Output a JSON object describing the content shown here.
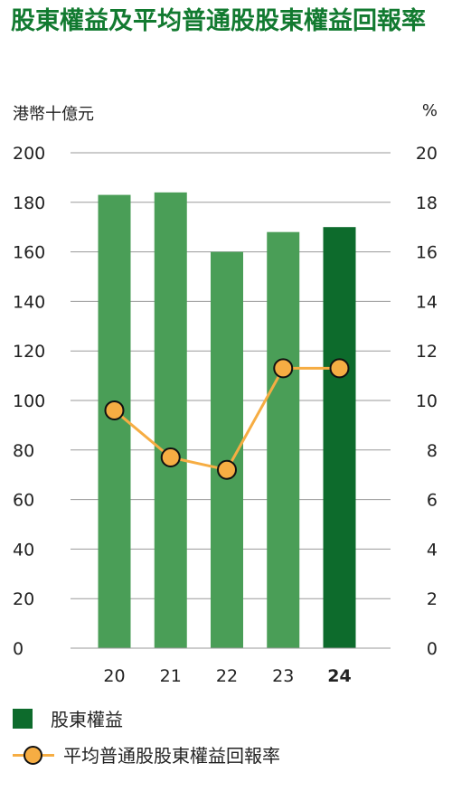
{
  "title": "股東權益及平均普通股股東權益回報率",
  "left_unit": "港幣十億元",
  "right_unit": "%",
  "legend": {
    "bar_label": "股東權益",
    "line_label": "平均普通股股東權益回報率"
  },
  "colors": {
    "title": "#127a30",
    "bar": "#4a9e57",
    "bar_highlight": "#0d6b2c",
    "line": "#f6ad43",
    "marker_border": "#111111",
    "grid": "#9a9a9a"
  },
  "chart_data": {
    "type": "bar",
    "categories": [
      "20",
      "21",
      "22",
      "23",
      "24"
    ],
    "highlight_category": "24",
    "series": [
      {
        "name": "股東權益",
        "type": "bar",
        "axis": "left",
        "values": [
          183,
          184,
          160,
          168,
          170
        ]
      },
      {
        "name": "平均普通股股東權益回報率",
        "type": "line",
        "axis": "right",
        "values": [
          9.6,
          7.7,
          7.2,
          11.3,
          11.3
        ]
      }
    ],
    "ylim_left": [
      0,
      200
    ],
    "ylim_right": [
      0,
      20
    ],
    "yticks_left": [
      "0",
      "20",
      "40",
      "60",
      "80",
      "100",
      "120",
      "140",
      "160",
      "180",
      "200"
    ],
    "yticks_right": [
      "0",
      "2",
      "4",
      "6",
      "8",
      "10",
      "12",
      "14",
      "16",
      "18",
      "20"
    ],
    "grid": true
  }
}
